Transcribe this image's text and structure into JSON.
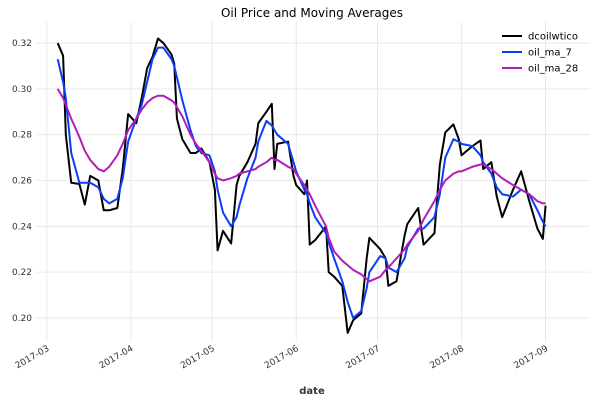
{
  "chart_data": {
    "type": "line",
    "title": "Oil Price and Moving Averages",
    "xlabel": "date",
    "x": [
      64,
      66,
      67,
      69,
      72,
      74,
      76,
      79,
      81,
      83,
      86,
      88,
      90,
      93,
      95,
      97,
      99,
      101,
      103,
      106,
      107,
      108,
      110,
      113,
      115,
      117,
      120,
      122,
      123,
      125,
      128,
      130,
      131,
      134,
      137,
      138,
      141,
      143,
      144,
      145,
      149,
      151,
      152,
      155,
      156,
      157,
      159,
      163,
      164,
      166,
      169,
      171,
      173,
      176,
      178,
      179,
      183,
      185,
      186,
      189,
      192,
      193,
      197,
      199,
      203,
      205,
      207,
      210,
      212,
      213,
      217,
      220,
      221,
      224,
      226,
      228,
      232,
      235,
      238,
      241,
      243,
      244
    ],
    "series": [
      {
        "name": "dcoilwtico",
        "color": "#000000",
        "values": [
          0.32,
          0.3145,
          0.28,
          0.259,
          0.2585,
          0.2495,
          0.262,
          0.26,
          0.247,
          0.247,
          0.248,
          0.265,
          0.289,
          0.285,
          0.296,
          0.309,
          0.314,
          0.322,
          0.32,
          0.315,
          0.311,
          0.287,
          0.278,
          0.272,
          0.272,
          0.274,
          0.268,
          0.256,
          0.2295,
          0.238,
          0.2325,
          0.258,
          0.262,
          0.268,
          0.276,
          0.285,
          0.29,
          0.2935,
          0.265,
          0.276,
          0.277,
          0.262,
          0.258,
          0.254,
          0.26,
          0.232,
          0.234,
          0.24,
          0.22,
          0.218,
          0.214,
          0.1935,
          0.199,
          0.202,
          0.226,
          0.235,
          0.23,
          0.226,
          0.214,
          0.216,
          0.236,
          0.241,
          0.248,
          0.232,
          0.237,
          0.267,
          0.281,
          0.2845,
          0.278,
          0.271,
          0.275,
          0.2775,
          0.265,
          0.268,
          0.253,
          0.244,
          0.256,
          0.264,
          0.251,
          0.239,
          0.2345,
          0.249
        ]
      },
      {
        "name": "oil_ma_7",
        "color": "#0a3ff5",
        "values": [
          0.313,
          0.303,
          0.296,
          0.272,
          0.259,
          0.259,
          0.259,
          0.257,
          0.252,
          0.25,
          0.252,
          0.261,
          0.277,
          0.287,
          0.293,
          0.303,
          0.313,
          0.318,
          0.318,
          0.313,
          0.31,
          0.305,
          0.295,
          0.282,
          0.275,
          0.272,
          0.271,
          0.264,
          0.256,
          0.246,
          0.24,
          0.244,
          0.249,
          0.261,
          0.27,
          0.277,
          0.286,
          0.284,
          0.282,
          0.28,
          0.276,
          0.268,
          0.264,
          0.256,
          0.254,
          0.25,
          0.244,
          0.237,
          0.233,
          0.226,
          0.216,
          0.207,
          0.2,
          0.203,
          0.213,
          0.22,
          0.227,
          0.226,
          0.222,
          0.22,
          0.226,
          0.231,
          0.239,
          0.239,
          0.244,
          0.254,
          0.27,
          0.278,
          0.277,
          0.276,
          0.275,
          0.271,
          0.268,
          0.263,
          0.257,
          0.254,
          0.253,
          0.256,
          0.254,
          0.247,
          0.242,
          0.24
        ]
      },
      {
        "name": "oil_ma_28",
        "color": "#b21cbb",
        "values": [
          0.3,
          0.296,
          0.293,
          0.287,
          0.279,
          0.273,
          0.269,
          0.265,
          0.264,
          0.266,
          0.271,
          0.276,
          0.282,
          0.287,
          0.291,
          0.294,
          0.296,
          0.297,
          0.297,
          0.295,
          0.294,
          0.292,
          0.288,
          0.28,
          0.276,
          0.273,
          0.268,
          0.263,
          0.261,
          0.26,
          0.261,
          0.262,
          0.263,
          0.264,
          0.265,
          0.266,
          0.268,
          0.27,
          0.269,
          0.269,
          0.266,
          0.265,
          0.263,
          0.258,
          0.256,
          0.254,
          0.249,
          0.24,
          0.235,
          0.229,
          0.225,
          0.223,
          0.221,
          0.219,
          0.217,
          0.216,
          0.218,
          0.221,
          0.222,
          0.226,
          0.23,
          0.232,
          0.238,
          0.243,
          0.251,
          0.256,
          0.26,
          0.263,
          0.264,
          0.264,
          0.266,
          0.267,
          0.267,
          0.265,
          0.263,
          0.261,
          0.258,
          0.256,
          0.254,
          0.251,
          0.25,
          0.25
        ]
      }
    ],
    "xlim": [
      56,
      260.4
    ],
    "xticks": [
      {
        "value": 60,
        "label": "2017-03"
      },
      {
        "value": 91,
        "label": "2017-04"
      },
      {
        "value": 121,
        "label": "2017-05"
      },
      {
        "value": 152,
        "label": "2017-06"
      },
      {
        "value": 182,
        "label": "2017-07"
      },
      {
        "value": 213,
        "label": "2017-08"
      },
      {
        "value": 244,
        "label": "2017-09"
      }
    ],
    "ylim": [
      0.1895,
      0.3292
    ],
    "yticks": [
      {
        "value": 0.2,
        "label": "0.20"
      },
      {
        "value": 0.22,
        "label": "0.22"
      },
      {
        "value": 0.24,
        "label": "0.24"
      },
      {
        "value": 0.26,
        "label": "0.26"
      },
      {
        "value": 0.28,
        "label": "0.28"
      },
      {
        "value": 0.3,
        "label": "0.30"
      },
      {
        "value": 0.32,
        "label": "0.32"
      }
    ],
    "grid": true,
    "legend": "upper right"
  }
}
